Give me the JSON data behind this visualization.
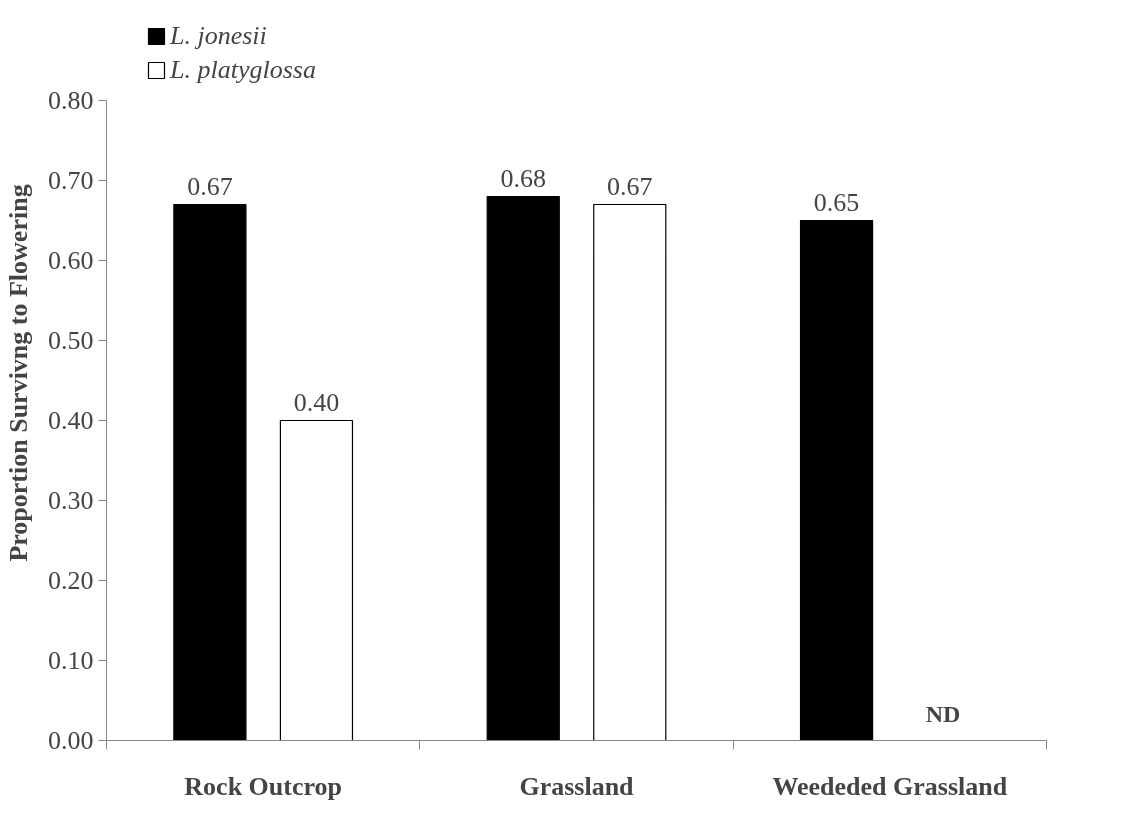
{
  "chart_data": {
    "type": "bar",
    "ylabel": "Proportion Survivng to Flowering",
    "categories": [
      "Rock Outcrop",
      "Grassland",
      "Weededed Grassland"
    ],
    "series": [
      {
        "name": "L. jonesii",
        "color": "#000000",
        "values": [
          0.67,
          0.68,
          0.65
        ],
        "value_labels": [
          "0.67",
          "0.68",
          "0.65"
        ]
      },
      {
        "name": "L. platyglossa",
        "color": "#ffffff",
        "values": [
          0.4,
          0.67,
          null
        ],
        "value_labels": [
          "0.40",
          "0.67",
          null
        ]
      }
    ],
    "ylim": [
      0,
      0.8
    ],
    "yticks": [
      {
        "value": 0,
        "label": "0.00"
      },
      {
        "value": 0.1,
        "label": "0.10"
      },
      {
        "value": 0.2,
        "label": "0.20"
      },
      {
        "value": 0.3,
        "label": "0.30"
      },
      {
        "value": 0.4,
        "label": "0.40"
      },
      {
        "value": 0.5,
        "label": "0.50"
      },
      {
        "value": 0.6,
        "label": "0.60"
      },
      {
        "value": 0.7,
        "label": "0.70"
      },
      {
        "value": 0.8,
        "label": "0.80"
      }
    ],
    "legend": "top left",
    "annotations": [
      "ND"
    ]
  }
}
